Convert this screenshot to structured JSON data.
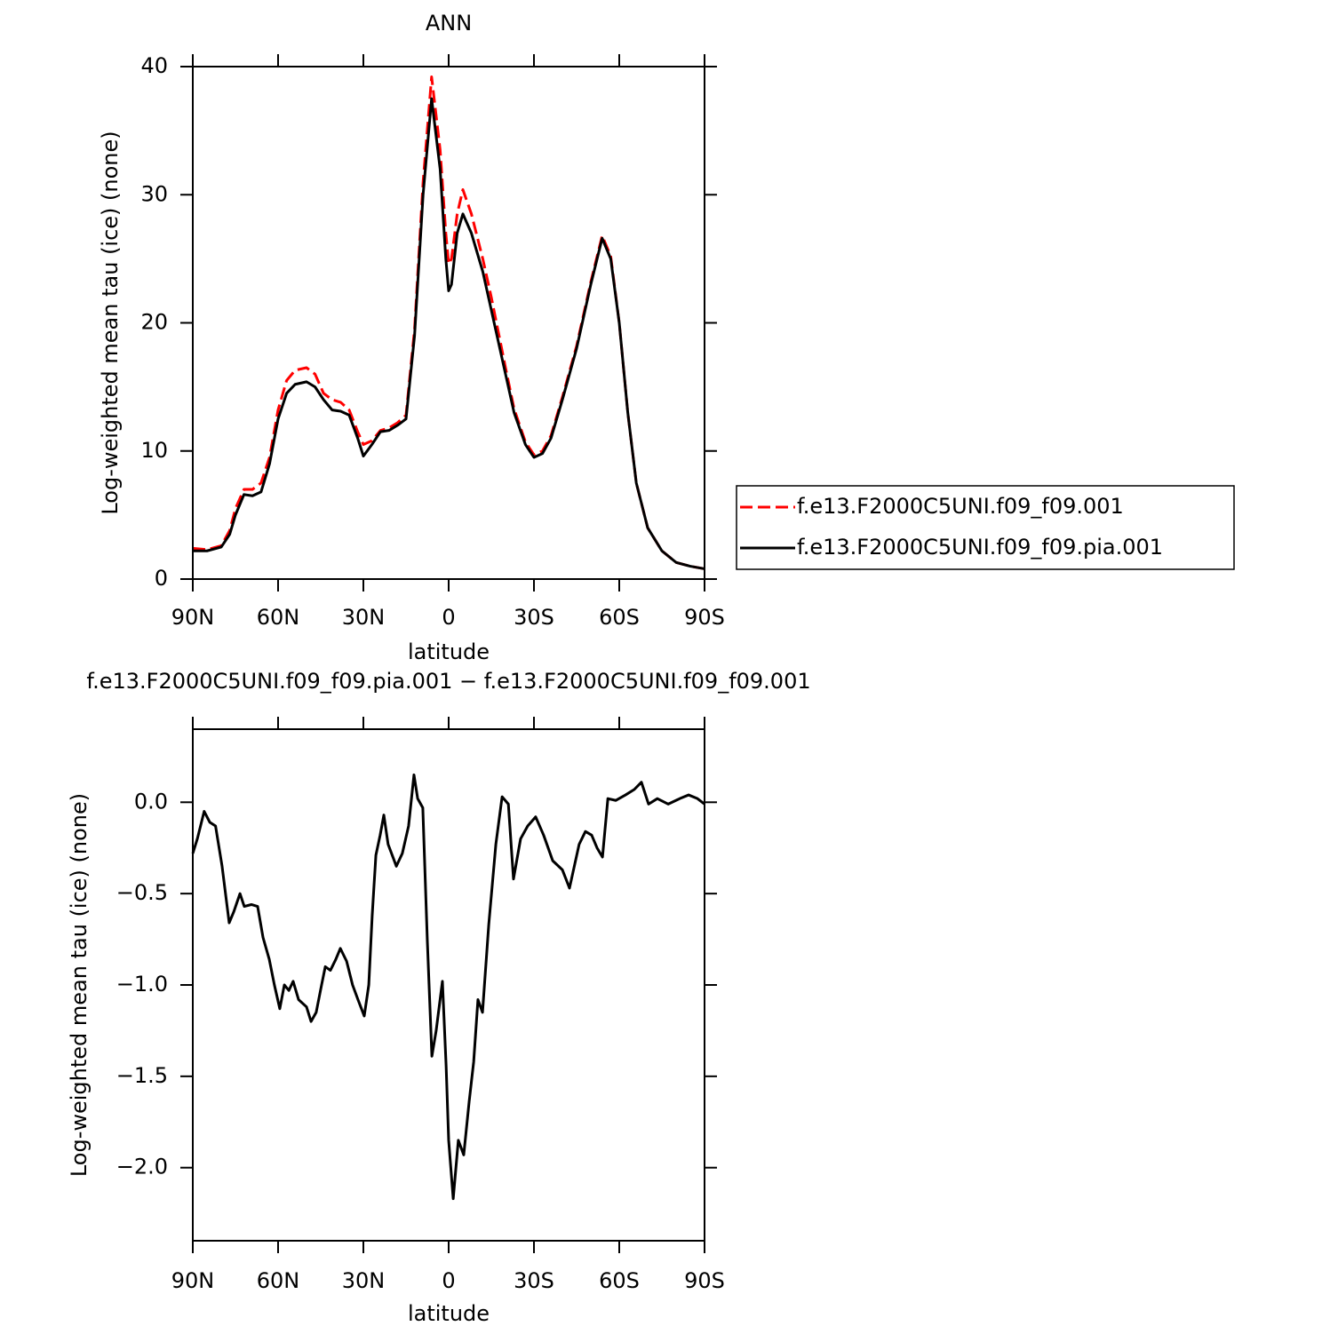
{
  "chart_data": [
    {
      "type": "line",
      "title": "ANN",
      "xlabel": "latitude",
      "ylabel": "Log-weighted mean tau (ice) (none)",
      "x": [
        90,
        85,
        80,
        77,
        75,
        72,
        69,
        66,
        63,
        60,
        57,
        54,
        50,
        47,
        44,
        41,
        38,
        35,
        32,
        30,
        27,
        24,
        21,
        18,
        15,
        12,
        9,
        6,
        3,
        1,
        0,
        -1,
        -3,
        -5,
        -8,
        -12,
        -15,
        -20,
        -23,
        -27,
        -30,
        -33,
        -36,
        -40,
        -45,
        -50,
        -54,
        -57,
        -60,
        -63,
        -66,
        -70,
        -75,
        -80,
        -85,
        -90
      ],
      "series": [
        {
          "name": "f.e13.F2000C5UNI.f09_f09.001",
          "color": "#ff0000",
          "dashed": true,
          "values": [
            2.4,
            2.3,
            2.6,
            3.8,
            5.5,
            7.0,
            7.0,
            7.5,
            9.5,
            13.2,
            15.5,
            16.3,
            16.5,
            16,
            14.5,
            14,
            13.8,
            13.2,
            11.5,
            10.5,
            10.8,
            11.6,
            11.8,
            12.2,
            12.8,
            19.5,
            31,
            39.2,
            33.5,
            27,
            24.6,
            25,
            28.5,
            30.4,
            28.5,
            25,
            22,
            16.5,
            13.3,
            10.7,
            9.7,
            10,
            11.2,
            14.2,
            18.2,
            23.2,
            26.8,
            25.2,
            20,
            13,
            7.5,
            4,
            2.2,
            1.3,
            1.0,
            0.8
          ]
        },
        {
          "name": "f.e13.F2000C5UNI.f09_f09.pia.001",
          "color": "#000000",
          "dashed": false,
          "values": [
            2.2,
            2.2,
            2.5,
            3.5,
            5,
            6.6,
            6.5,
            6.8,
            9,
            12.5,
            14.5,
            15.2,
            15.4,
            15,
            14,
            13.2,
            13.1,
            12.8,
            11,
            9.6,
            10.5,
            11.5,
            11.6,
            12,
            12.5,
            19,
            30,
            37.5,
            32,
            25,
            22.5,
            23,
            27,
            28.5,
            27,
            24,
            21,
            16,
            13,
            10.5,
            9.5,
            9.8,
            11,
            14,
            18,
            23,
            26.6,
            25,
            20,
            13,
            7.5,
            4,
            2.2,
            1.3,
            1.0,
            0.8
          ]
        }
      ],
      "xlim": [
        90,
        -90
      ],
      "xticks": [
        {
          "value": 90,
          "label": "90N"
        },
        {
          "value": 60,
          "label": "60N"
        },
        {
          "value": 30,
          "label": "30N"
        },
        0,
        {
          "value": -30,
          "label": "30S"
        },
        {
          "value": -60,
          "label": "60S"
        },
        {
          "value": -90,
          "label": "90S"
        }
      ],
      "ylim": [
        0,
        40
      ],
      "yticks": [
        0,
        10,
        20,
        30,
        40
      ],
      "legend": "right"
    },
    {
      "type": "line",
      "title": "f.e13.F2000C5UNI.f09_f09.pia.001 − f.e13.F2000C5UNI.f09_f09.001",
      "xlabel": "latitude",
      "ylabel": "Log-weighted mean tau (ice) (none)",
      "x": [
        90,
        88.4,
        86,
        84,
        82,
        79.7,
        77.2,
        75.6,
        73.4,
        71.9,
        69.4,
        67.2,
        65.3,
        63.1,
        61.3,
        59.4,
        57.8,
        56.2,
        54.7,
        52.8,
        50,
        48.4,
        46.6,
        44.7,
        43.4,
        41.6,
        39.7,
        38.1,
        35.9,
        33.8,
        31.9,
        29.7,
        28.1,
        26.9,
        25.6,
        24.1,
        22.8,
        21.3,
        18.4,
        16.3,
        14.1,
        12.2,
        10.9,
        9.1,
        7.5,
        5.9,
        4.4,
        2.2,
        0.9,
        0,
        -1.6,
        -3.4,
        -5.3,
        -7.2,
        -8.8,
        -10.3,
        -11.9,
        -14.1,
        -16.6,
        -18.8,
        -21,
        -22.8,
        -25.3,
        -27.8,
        -30.6,
        -33.4,
        -36.6,
        -40,
        -42.5,
        -45.9,
        -48.1,
        -50.3,
        -52.2,
        -54.1,
        -56,
        -58.8,
        -62.2,
        -65.3,
        -67.8,
        -70.3,
        -73.4,
        -77.2,
        -81.3,
        -84.4,
        -87.5,
        -90
      ],
      "values": [
        -0.28,
        -0.2,
        -0.05,
        -0.11,
        -0.13,
        -0.35,
        -0.66,
        -0.6,
        -0.5,
        -0.57,
        -0.56,
        -0.57,
        -0.74,
        -0.86,
        -1.0,
        -1.13,
        -1.0,
        -1.03,
        -0.98,
        -1.08,
        -1.12,
        -1.2,
        -1.15,
        -1.0,
        -0.9,
        -0.92,
        -0.86,
        -0.8,
        -0.87,
        -1.0,
        -1.08,
        -1.17,
        -1.0,
        -0.62,
        -0.29,
        -0.18,
        -0.07,
        -0.23,
        -0.35,
        -0.28,
        -0.13,
        0.15,
        0.02,
        -0.03,
        -0.76,
        -1.39,
        -1.25,
        -0.98,
        -1.44,
        -1.85,
        -2.17,
        -1.85,
        -1.93,
        -1.64,
        -1.42,
        -1.08,
        -1.15,
        -0.67,
        -0.23,
        0.03,
        -0.01,
        -0.42,
        -0.2,
        -0.13,
        -0.08,
        -0.18,
        -0.32,
        -0.37,
        -0.47,
        -0.23,
        -0.16,
        -0.18,
        -0.25,
        -0.3,
        0.02,
        0.01,
        0.04,
        0.07,
        0.11,
        -0.01,
        0.02,
        -0.01,
        0.02,
        0.04,
        0.02,
        -0.01
      ],
      "color": "#000000",
      "xlim": [
        90,
        -90
      ],
      "xticks": [
        {
          "value": 90,
          "label": "90N"
        },
        {
          "value": 60,
          "label": "60N"
        },
        {
          "value": 30,
          "label": "30N"
        },
        0,
        {
          "value": -30,
          "label": "30S"
        },
        {
          "value": -60,
          "label": "60S"
        },
        {
          "value": -90,
          "label": "90S"
        }
      ],
      "ylim": [
        -2.4,
        0.4
      ],
      "yticks": [
        {
          "value": 0,
          "label": "0.0"
        },
        {
          "value": -0.5,
          "label": "−0.5"
        },
        {
          "value": -1,
          "label": "−1.0"
        },
        {
          "value": -1.5,
          "label": "−1.5"
        },
        {
          "value": -2,
          "label": "−2.0"
        }
      ]
    }
  ]
}
